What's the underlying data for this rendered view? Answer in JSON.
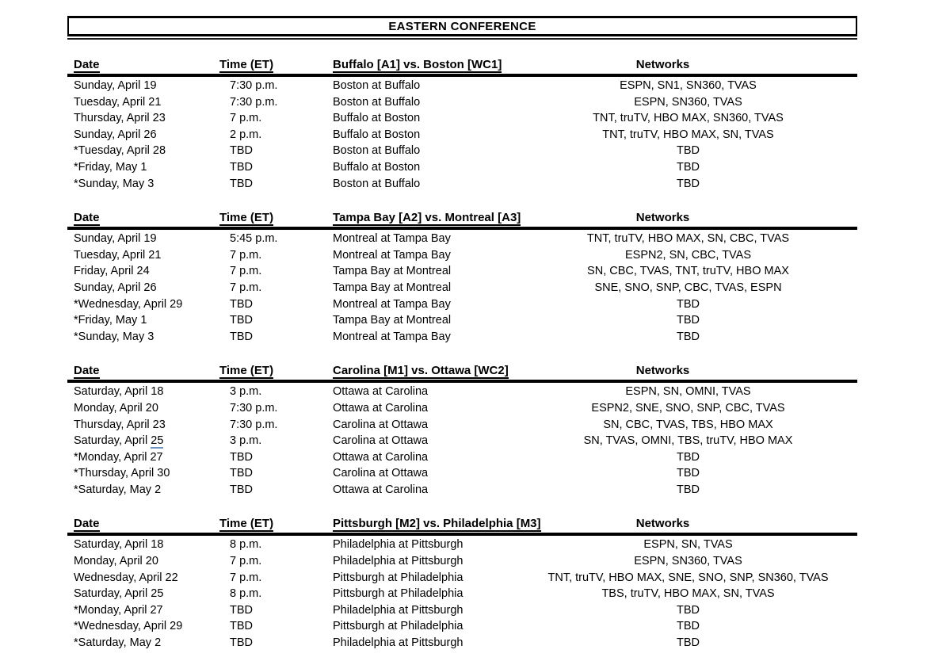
{
  "title": "EASTERN CONFERENCE",
  "columns": {
    "date": "Date",
    "time": "Time (ET)",
    "networks": "Networks"
  },
  "colors": {
    "text": "#000000",
    "rule": "#000000",
    "date_underline_accent": "#6f94c4"
  },
  "series": [
    {
      "matchup_header": "Buffalo [A1] vs. Boston [WC1]",
      "rows": [
        {
          "date": "Sunday, April 19",
          "time": "7:30 p.m.",
          "game": "Boston at Buffalo",
          "networks": "ESPN, SN1, SN360, TVAS"
        },
        {
          "date": "Tuesday, April 21",
          "time": "7:30 p.m.",
          "game": "Boston at Buffalo",
          "networks": "ESPN, SN360, TVAS"
        },
        {
          "date": "Thursday, April 23",
          "time": "7 p.m.",
          "game": "Buffalo at Boston",
          "networks": "TNT, truTV, HBO MAX, SN360, TVAS"
        },
        {
          "date": "Sunday, April 26",
          "time": "2 p.m.",
          "game": "Buffalo at Boston",
          "networks": "TNT, truTV, HBO MAX, SN, TVAS"
        },
        {
          "date": "*Tuesday, April 28",
          "time": "TBD",
          "game": "Boston at Buffalo",
          "networks": "TBD"
        },
        {
          "date": "*Friday, May 1",
          "time": "TBD",
          "game": "Buffalo at Boston",
          "networks": "TBD"
        },
        {
          "date": "*Sunday, May 3",
          "time": "TBD",
          "game": "Boston at Buffalo",
          "networks": "TBD"
        }
      ]
    },
    {
      "matchup_header": "Tampa Bay [A2] vs. Montreal [A3]",
      "rows": [
        {
          "date": "Sunday, April 19",
          "time": "5:45 p.m.",
          "game": "Montreal at Tampa Bay",
          "networks": "TNT, truTV, HBO MAX, SN, CBC, TVAS"
        },
        {
          "date": "Tuesday, April 21",
          "time": "7 p.m.",
          "game": "Montreal at Tampa Bay",
          "networks": "ESPN2, SN, CBC, TVAS"
        },
        {
          "date": "Friday, April 24",
          "time": "7 p.m.",
          "game": "Tampa Bay at Montreal",
          "networks": "SN, CBC, TVAS, TNT, truTV, HBO MAX"
        },
        {
          "date": "Sunday, April 26",
          "time": "7 p.m.",
          "game": "Tampa Bay at Montreal",
          "networks": "SNE, SNO, SNP, CBC, TVAS, ESPN"
        },
        {
          "date": "*Wednesday, April 29",
          "time": "TBD",
          "game": "Montreal at Tampa Bay",
          "networks": "TBD"
        },
        {
          "date": "*Friday, May 1",
          "time": "TBD",
          "game": "Tampa Bay at Montreal",
          "networks": "TBD"
        },
        {
          "date": "*Sunday, May 3",
          "time": "TBD",
          "game": "Montreal at Tampa Bay",
          "networks": "TBD"
        }
      ]
    },
    {
      "matchup_header": "Carolina [M1] vs. Ottawa [WC2]",
      "rows": [
        {
          "date": "Saturday, April 18",
          "time": "3 p.m.",
          "game": "Ottawa at Carolina",
          "networks": "ESPN, SN, OMNI, TVAS"
        },
        {
          "date": "Monday, April 20",
          "time": "7:30 p.m.",
          "game": "Ottawa at Carolina",
          "networks": "ESPN2, SNE, SNO, SNP, CBC, TVAS"
        },
        {
          "date": "Thursday, April 23",
          "time": "7:30 p.m.",
          "game": "Carolina at Ottawa",
          "networks": "SN, CBC, TVAS, TBS, HBO MAX"
        },
        {
          "date": "Saturday, April",
          "date_underlined": "25",
          "time": "3 p.m.",
          "game": "Carolina at Ottawa",
          "networks": "SN, TVAS, OMNI, TBS, truTV, HBO MAX"
        },
        {
          "date": "*Monday, April 27",
          "time": "TBD",
          "game": "Ottawa at Carolina",
          "networks": "TBD"
        },
        {
          "date": "*Thursday, April 30",
          "time": "TBD",
          "game": "Carolina at Ottawa",
          "networks": "TBD"
        },
        {
          "date": "*Saturday, May 2",
          "time": "TBD",
          "game": "Ottawa at Carolina",
          "networks": "TBD"
        }
      ]
    },
    {
      "matchup_header": "Pittsburgh [M2] vs. Philadelphia [M3]",
      "rows": [
        {
          "date": "Saturday, April 18",
          "time": "8 p.m.",
          "game": "Philadelphia at Pittsburgh",
          "networks": "ESPN, SN, TVAS"
        },
        {
          "date": "Monday, April 20",
          "time": "7 p.m.",
          "game": "Philadelphia at Pittsburgh",
          "networks": "ESPN, SN360, TVAS"
        },
        {
          "date": "Wednesday, April 22",
          "time": "7 p.m.",
          "game": "Pittsburgh at Philadelphia",
          "networks": "TNT, truTV, HBO MAX, SNE, SNO, SNP, SN360, TVAS"
        },
        {
          "date": "Saturday, April 25",
          "time": "8 p.m.",
          "game": "Pittsburgh at Philadelphia",
          "networks": "TBS, truTV, HBO MAX, SN, TVAS"
        },
        {
          "date": "*Monday, April 27",
          "time": "TBD",
          "game": "Philadelphia at Pittsburgh",
          "networks": "TBD"
        },
        {
          "date": "*Wednesday, April 29",
          "time": "TBD",
          "game": "Pittsburgh at Philadelphia",
          "networks": "TBD"
        },
        {
          "date": "*Saturday, May 2",
          "time": "TBD",
          "game": "Philadelphia at Pittsburgh",
          "networks": "TBD"
        }
      ]
    }
  ]
}
